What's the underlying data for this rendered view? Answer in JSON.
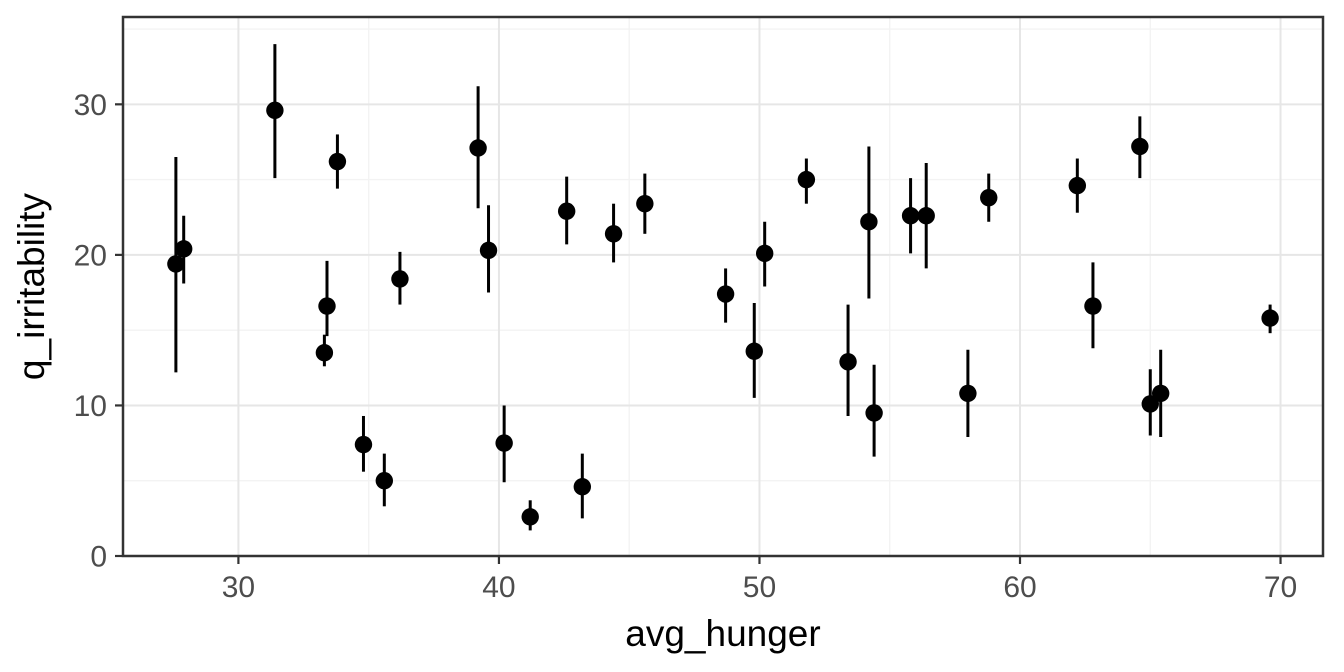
{
  "chart_data": {
    "type": "scatter",
    "variant": "pointrange",
    "title": "",
    "xlabel": "avg_hunger",
    "ylabel": "q_irritability",
    "x_ticks": [
      30,
      40,
      50,
      60,
      70
    ],
    "x_minor_ticks": [
      35,
      45,
      55,
      65
    ],
    "y_ticks": [
      0,
      10,
      20,
      30
    ],
    "y_minor_ticks": [
      5,
      15,
      25,
      35
    ],
    "xlim": [
      25.57,
      71.63
    ],
    "ylim": [
      0,
      35.8
    ],
    "grid": "on",
    "legend": "none",
    "colors": {
      "point": "#000000",
      "grid_major": "#e6e6e6",
      "grid_minor": "#f3f3f3",
      "panel_border": "#333333",
      "tick": "#333333",
      "tick_label": "#4d4d4d",
      "axis_title": "#000000",
      "background": "#ffffff"
    },
    "points": [
      {
        "x": 27.6,
        "y": 19.4,
        "ymin": 12.2,
        "ymax": 26.5
      },
      {
        "x": 27.9,
        "y": 20.4,
        "ymin": 18.1,
        "ymax": 22.6
      },
      {
        "x": 31.4,
        "y": 29.6,
        "ymin": 25.1,
        "ymax": 34.0
      },
      {
        "x": 33.3,
        "y": 13.5,
        "ymin": 12.6,
        "ymax": 14.7
      },
      {
        "x": 33.4,
        "y": 16.6,
        "ymin": 14.6,
        "ymax": 19.6
      },
      {
        "x": 33.8,
        "y": 26.2,
        "ymin": 24.4,
        "ymax": 28.0
      },
      {
        "x": 34.8,
        "y": 7.4,
        "ymin": 5.6,
        "ymax": 9.3
      },
      {
        "x": 35.6,
        "y": 5.0,
        "ymin": 3.3,
        "ymax": 6.8
      },
      {
        "x": 36.2,
        "y": 18.4,
        "ymin": 16.7,
        "ymax": 20.2
      },
      {
        "x": 39.2,
        "y": 27.1,
        "ymin": 23.1,
        "ymax": 31.2
      },
      {
        "x": 39.6,
        "y": 20.3,
        "ymin": 17.5,
        "ymax": 23.3
      },
      {
        "x": 40.2,
        "y": 7.5,
        "ymin": 4.9,
        "ymax": 10.0
      },
      {
        "x": 41.2,
        "y": 2.6,
        "ymin": 1.7,
        "ymax": 3.7
      },
      {
        "x": 42.6,
        "y": 22.9,
        "ymin": 20.7,
        "ymax": 25.2
      },
      {
        "x": 43.2,
        "y": 4.6,
        "ymin": 2.5,
        "ymax": 6.8
      },
      {
        "x": 44.4,
        "y": 21.4,
        "ymin": 19.5,
        "ymax": 23.4
      },
      {
        "x": 45.6,
        "y": 23.4,
        "ymin": 21.4,
        "ymax": 25.4
      },
      {
        "x": 48.7,
        "y": 17.4,
        "ymin": 15.5,
        "ymax": 19.1
      },
      {
        "x": 49.8,
        "y": 13.6,
        "ymin": 10.5,
        "ymax": 16.8
      },
      {
        "x": 50.2,
        "y": 20.1,
        "ymin": 17.9,
        "ymax": 22.2
      },
      {
        "x": 51.8,
        "y": 25.0,
        "ymin": 23.4,
        "ymax": 26.4
      },
      {
        "x": 53.4,
        "y": 12.9,
        "ymin": 9.3,
        "ymax": 16.7
      },
      {
        "x": 54.2,
        "y": 22.2,
        "ymin": 17.1,
        "ymax": 27.2
      },
      {
        "x": 54.4,
        "y": 9.5,
        "ymin": 6.6,
        "ymax": 12.7
      },
      {
        "x": 55.8,
        "y": 22.6,
        "ymin": 20.1,
        "ymax": 25.1
      },
      {
        "x": 56.4,
        "y": 22.6,
        "ymin": 19.1,
        "ymax": 26.1
      },
      {
        "x": 58.0,
        "y": 10.8,
        "ymin": 7.9,
        "ymax": 13.7
      },
      {
        "x": 58.8,
        "y": 23.8,
        "ymin": 22.2,
        "ymax": 25.4
      },
      {
        "x": 62.2,
        "y": 24.6,
        "ymin": 22.8,
        "ymax": 26.4
      },
      {
        "x": 62.8,
        "y": 16.6,
        "ymin": 13.8,
        "ymax": 19.5
      },
      {
        "x": 64.6,
        "y": 27.2,
        "ymin": 25.1,
        "ymax": 29.2
      },
      {
        "x": 65.0,
        "y": 10.1,
        "ymin": 8.0,
        "ymax": 12.4
      },
      {
        "x": 65.4,
        "y": 10.8,
        "ymin": 7.9,
        "ymax": 13.7
      },
      {
        "x": 69.6,
        "y": 15.8,
        "ymin": 14.8,
        "ymax": 16.7
      }
    ]
  }
}
